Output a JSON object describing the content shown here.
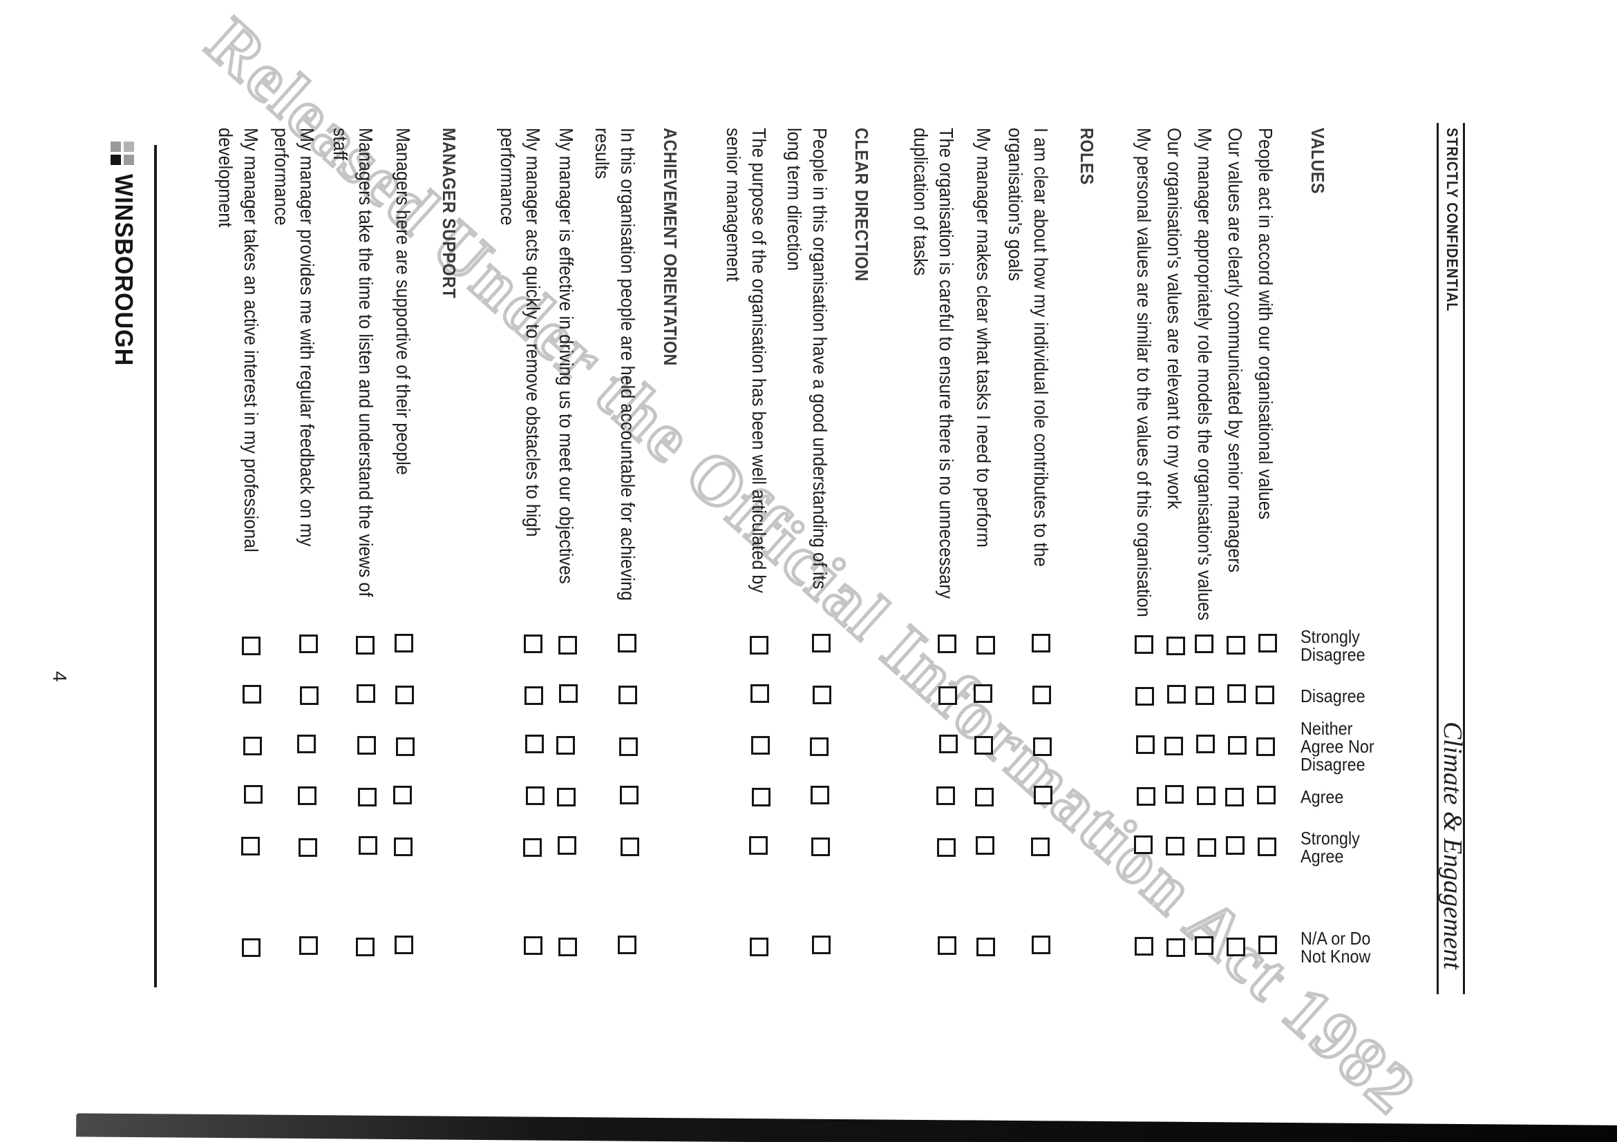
{
  "header": {
    "classification": "STRICTLY CONFIDENTIAL",
    "category": "Climate & Engagement"
  },
  "watermark": {
    "text": "Released Under the Official Information Act 1982"
  },
  "response_options": [
    "Strongly\nDisagree",
    "Disagree",
    "Neither\nAgree Nor\nDisagree",
    "Agree",
    "Strongly\nAgree",
    "N/A or Do\nNot Know"
  ],
  "sections": [
    {
      "title": "VALUES",
      "questions": [
        {
          "text": "People act in accord with our organisational values"
        },
        {
          "text": "Our values are clearly communicated by senior managers"
        },
        {
          "text": "My manager appropriately role models the organisation's values"
        },
        {
          "text": "Our organisation's values are relevant to my work"
        },
        {
          "text": "My personal values are similar to the values of this organisation"
        }
      ]
    },
    {
      "title": "ROLES",
      "questions": [
        {
          "text": "I am clear about how my individual role contributes to the\norganisation's goals"
        },
        {
          "text": "My manager makes clear what tasks I need to perform"
        },
        {
          "text": "The organisation is careful to ensure there is no unnecessary\nduplication of tasks"
        }
      ]
    },
    {
      "title": "CLEAR DIRECTION",
      "questions": [
        {
          "text": "People in this organisation have a good understanding of its\nlong term direction"
        },
        {
          "text": "The purpose of the organisation has been well articulated by\nsenior management"
        }
      ]
    },
    {
      "title": "ACHIEVEMENT ORIENTATION",
      "questions": [
        {
          "text": "In this organisation people are held accountable for achieving\nresults"
        },
        {
          "text": "My manager is effective in driving us to meet our objectives"
        },
        {
          "text": "My manager acts quickly to remove obstacles to high\nperformance"
        }
      ]
    },
    {
      "title": "MANAGER SUPPORT",
      "questions": [
        {
          "text": "Managers here are supportive of their people"
        },
        {
          "text": "Managers take the time to listen and understand the views of\nstaff"
        },
        {
          "text": "My manager provides me with regular feedback on my\nperformance"
        },
        {
          "text": "My manager takes an active interest in my professional\ndevelopment"
        }
      ]
    }
  ],
  "footer": {
    "brand": "WINSBOROUGH",
    "page_number": "4"
  },
  "colors": {
    "ink": "#1d1d1d",
    "heading": "#3a3a3a",
    "watermark_stroke": "#bcbcbc",
    "rule": "#1a1a1a"
  }
}
